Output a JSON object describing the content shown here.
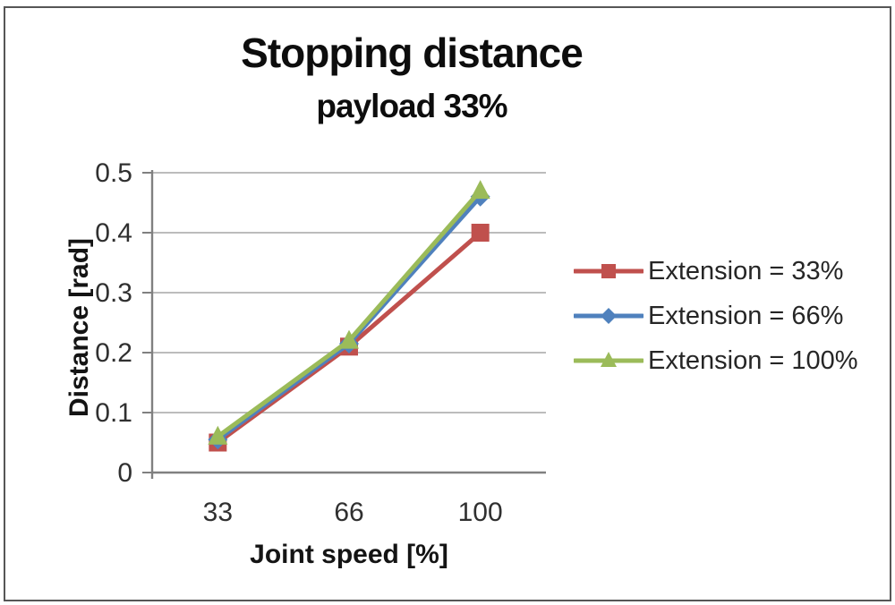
{
  "frame": {
    "border_color": "#565656",
    "background_color": "#ffffff"
  },
  "chart_data": {
    "type": "line",
    "title": "Stopping distance",
    "subtitle": "payload 33%",
    "xlabel": "Joint speed [%]",
    "ylabel": "Distance [rad]",
    "categories": [
      "33",
      "66",
      "100"
    ],
    "x_values": [
      33,
      66,
      100
    ],
    "ylim": [
      0,
      0.5
    ],
    "yticks": [
      0,
      0.1,
      0.2,
      0.3,
      0.4,
      0.5
    ],
    "ytick_labels": [
      "0",
      "0.1",
      "0.2",
      "0.3",
      "0.4",
      "0.5"
    ],
    "grid": "horizontal",
    "legend_position": "right",
    "series": [
      {
        "name": "Extension = 33%",
        "color": "#C0504D",
        "marker": "square",
        "values": [
          0.05,
          0.21,
          0.4
        ]
      },
      {
        "name": "Extension = 66%",
        "color": "#4F81BD",
        "marker": "diamond",
        "values": [
          0.055,
          0.215,
          0.46
        ]
      },
      {
        "name": "Extension = 100%",
        "color": "#9BBB59",
        "marker": "triangle",
        "values": [
          0.06,
          0.22,
          0.47
        ]
      }
    ],
    "axis_color": "#808080",
    "gridline_color": "#a6a6a6",
    "tick_label_color": "#303030"
  }
}
